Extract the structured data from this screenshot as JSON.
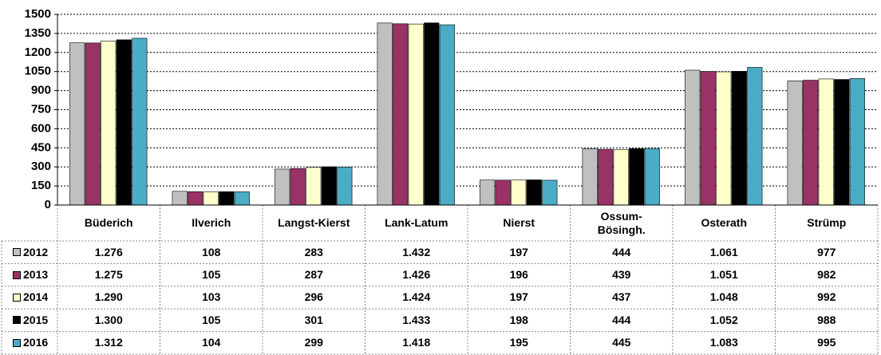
{
  "chart_data": {
    "type": "bar",
    "categories": [
      "Büderich",
      "Ilverich",
      "Langst-Kierst",
      "Lank-Latum",
      "Nierst",
      "Ossum-\nBösingh.",
      "Osterath",
      "Strümp"
    ],
    "series": [
      {
        "name": "2012",
        "color": "#c0c0c0",
        "values": [
          1276,
          108,
          283,
          1432,
          197,
          444,
          1061,
          977
        ],
        "value_labels": [
          "1.276",
          "108",
          "283",
          "1.432",
          "197",
          "444",
          "1.061",
          "977"
        ]
      },
      {
        "name": "2013",
        "color": "#993366",
        "values": [
          1275,
          105,
          287,
          1426,
          196,
          439,
          1051,
          982
        ],
        "value_labels": [
          "1.275",
          "105",
          "287",
          "1.426",
          "196",
          "439",
          "1.051",
          "982"
        ]
      },
      {
        "name": "2014",
        "color": "#ffffcc",
        "values": [
          1290,
          103,
          296,
          1424,
          197,
          437,
          1048,
          992
        ],
        "value_labels": [
          "1.290",
          "103",
          "296",
          "1.424",
          "197",
          "437",
          "1.048",
          "992"
        ]
      },
      {
        "name": "2015",
        "color": "#000000",
        "values": [
          1300,
          105,
          301,
          1433,
          198,
          444,
          1052,
          988
        ],
        "value_labels": [
          "1.300",
          "105",
          "301",
          "1.433",
          "198",
          "444",
          "1.052",
          "988"
        ]
      },
      {
        "name": "2016",
        "color": "#4bacc6",
        "values": [
          1312,
          104,
          299,
          1418,
          195,
          445,
          1083,
          995
        ],
        "value_labels": [
          "1.312",
          "104",
          "299",
          "1.418",
          "195",
          "445",
          "1.083",
          "995"
        ]
      }
    ],
    "ylim": [
      0,
      1500
    ],
    "yticks": [
      0,
      150,
      300,
      450,
      600,
      750,
      900,
      1050,
      1200,
      1350,
      1500
    ],
    "grid": true
  }
}
